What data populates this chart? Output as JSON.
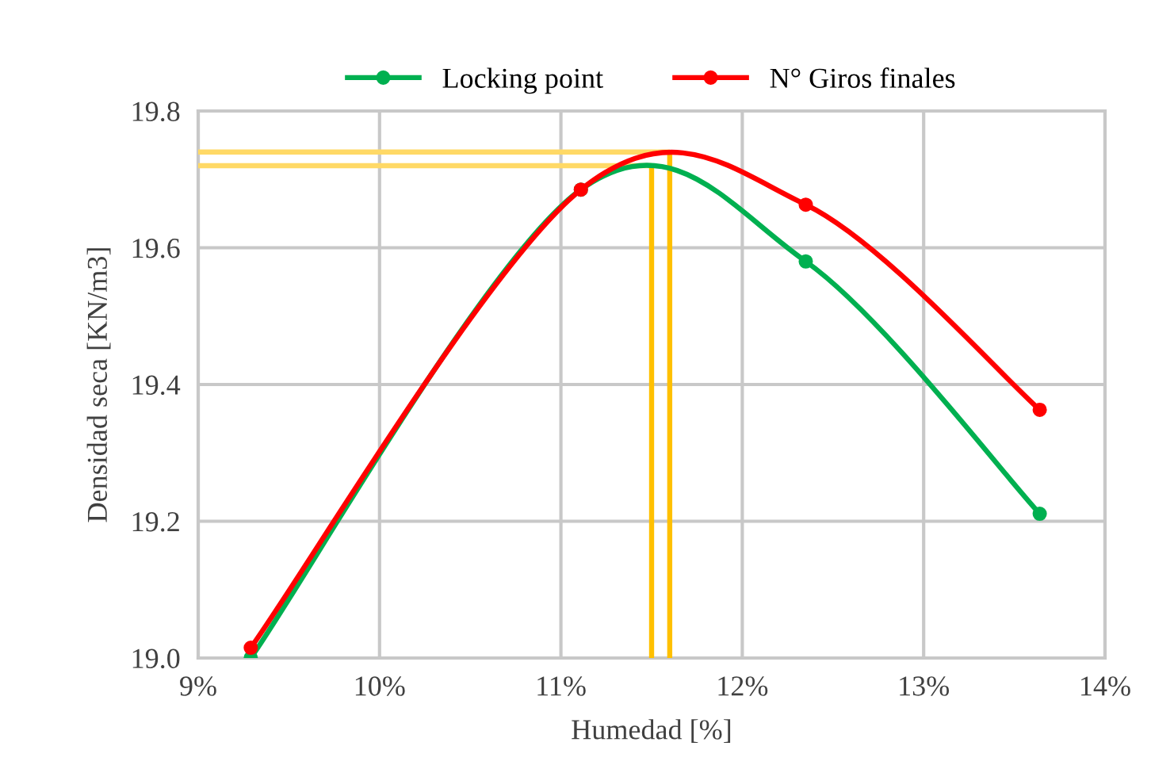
{
  "chart_data": {
    "type": "line",
    "xlabel": "Humedad [%]",
    "ylabel": "Densidad seca [KN/m3]",
    "xlim": [
      9,
      14
    ],
    "xticks": [
      {
        "value": 9,
        "label": "9%"
      },
      {
        "value": 10,
        "label": "10%"
      },
      {
        "value": 11,
        "label": "11%"
      },
      {
        "value": 12,
        "label": "12%"
      },
      {
        "value": 13,
        "label": "13%"
      },
      {
        "value": 14,
        "label": "14%"
      }
    ],
    "ylim": [
      19.0,
      19.8
    ],
    "yticks": [
      {
        "value": 19.0,
        "label": "19.0"
      },
      {
        "value": 19.2,
        "label": "19.2"
      },
      {
        "value": 19.4,
        "label": "19.4"
      },
      {
        "value": 19.6,
        "label": "19.6"
      },
      {
        "value": 19.8,
        "label": "19.8"
      }
    ],
    "grid": true,
    "legend": "top",
    "series": [
      {
        "name": "Locking point",
        "color": "#00b050",
        "marker": "circle",
        "x": [
          9.29,
          11.11,
          12.35,
          13.64
        ],
        "values": [
          19.0,
          19.685,
          19.58,
          19.211
        ]
      },
      {
        "name": "N° Giros finales",
        "color": "#ff0000",
        "marker": "circle",
        "x": [
          9.29,
          11.11,
          12.35,
          13.64
        ],
        "values": [
          19.015,
          19.685,
          19.663,
          19.363
        ]
      },
      {
        "color": "#ffd966",
        "marker": "none",
        "x": [
          9,
          11.5
        ],
        "values": [
          19.72,
          19.72
        ]
      },
      {
        "color": "#ffd966",
        "marker": "none",
        "x": [
          9,
          11.6
        ],
        "values": [
          19.74,
          19.74
        ]
      },
      {
        "color": "#ffc000",
        "marker": "none",
        "x": [
          11.5,
          11.5
        ],
        "values": [
          19.0,
          19.72
        ]
      },
      {
        "color": "#ffc000",
        "marker": "none",
        "x": [
          11.6,
          11.6
        ],
        "values": [
          19.0,
          19.74
        ]
      }
    ]
  }
}
